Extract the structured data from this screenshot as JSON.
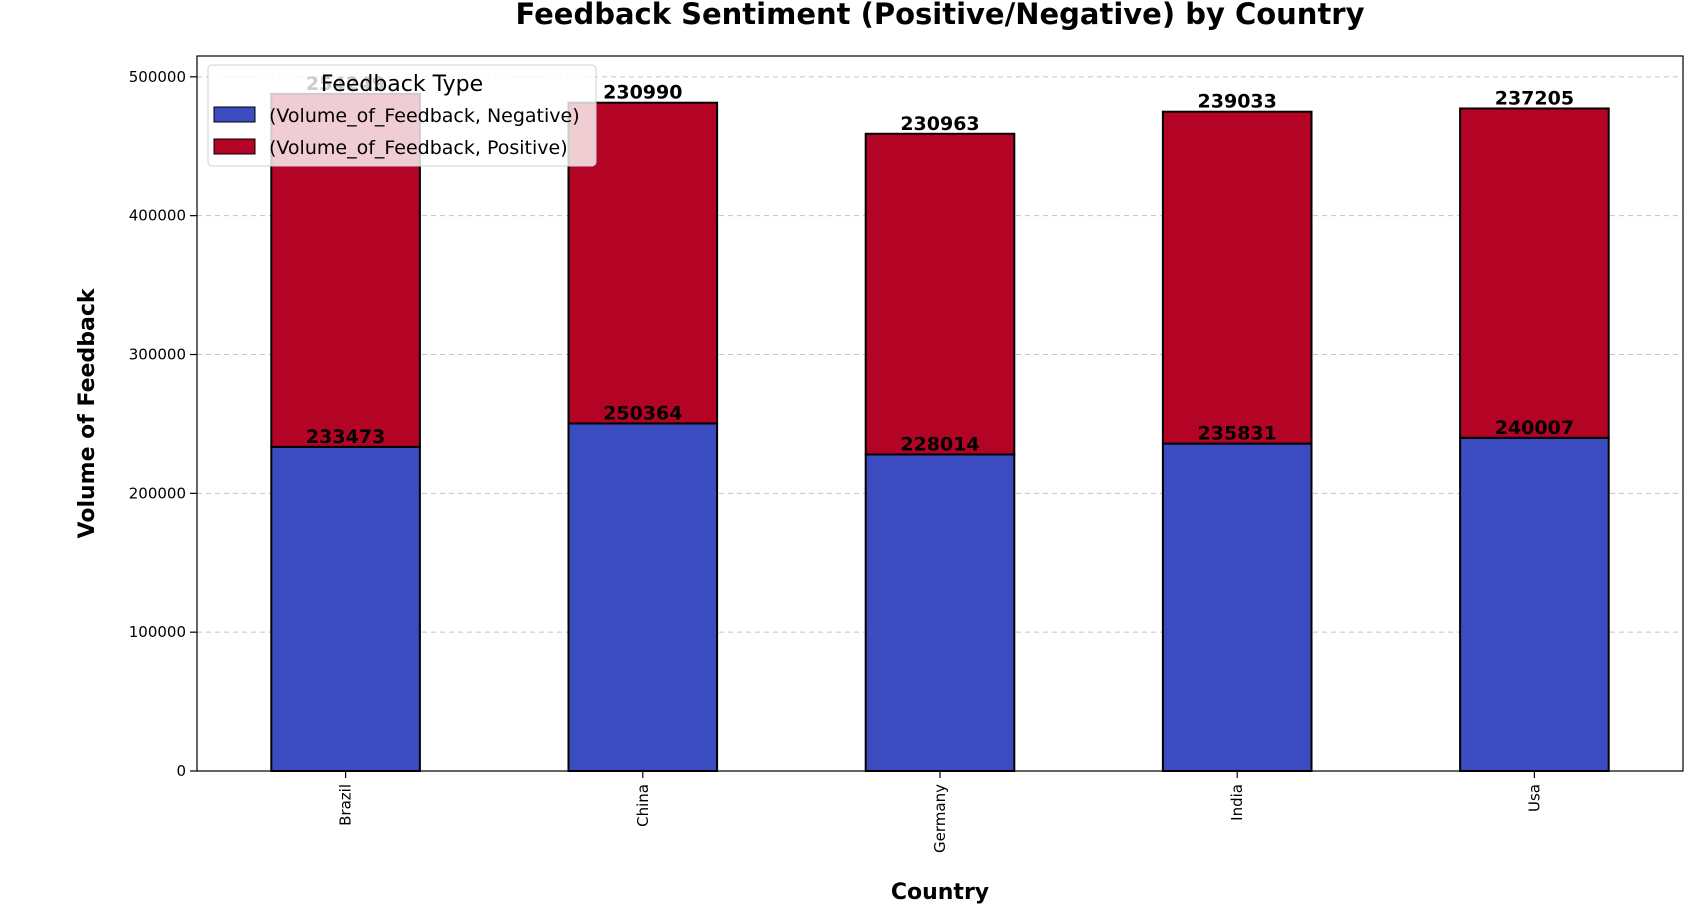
{
  "chart_data": {
    "type": "bar",
    "stacked": true,
    "title": "Feedback Sentiment (Positive/Negative) by Country",
    "xlabel": "Country",
    "ylabel": "Volume of Feedback",
    "categories": [
      "Brazil",
      "China",
      "Germany",
      "India",
      "Usa"
    ],
    "series": [
      {
        "name": "(Volume_of_Feedback, Negative)",
        "color": "#3b4cc0",
        "values": [
          233473,
          250364,
          228014,
          235831,
          240007
        ]
      },
      {
        "name": "(Volume_of_Feedback, Positive)",
        "color": "#b40426",
        "values": [
          254249,
          230990,
          230963,
          239033,
          237205
        ]
      }
    ],
    "ylim": [
      0,
      515000
    ],
    "yticks": [
      0,
      100000,
      200000,
      300000,
      400000,
      500000
    ],
    "grid": true,
    "legend": {
      "title": "Feedback Type",
      "placement": "upper-left"
    }
  }
}
